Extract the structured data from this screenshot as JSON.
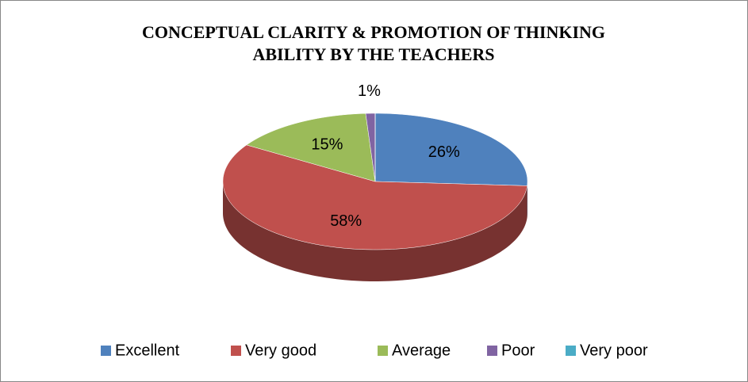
{
  "chart_data": {
    "type": "pie",
    "title": "CONCEPTUAL CLARITY & PROMOTION OF THINKING ABILITY BY THE TEACHERS",
    "categories": [
      "Excellent",
      "Very good",
      "Average",
      "Poor",
      "Very poor"
    ],
    "values": [
      26,
      58,
      15,
      1,
      0
    ],
    "value_labels": [
      "26%",
      "58%",
      "15%",
      "1%",
      null
    ],
    "colors": [
      "#4f81bd",
      "#c0504d",
      "#9bbb59",
      "#8064a2",
      "#4bacc6"
    ],
    "legend": "bottom"
  }
}
